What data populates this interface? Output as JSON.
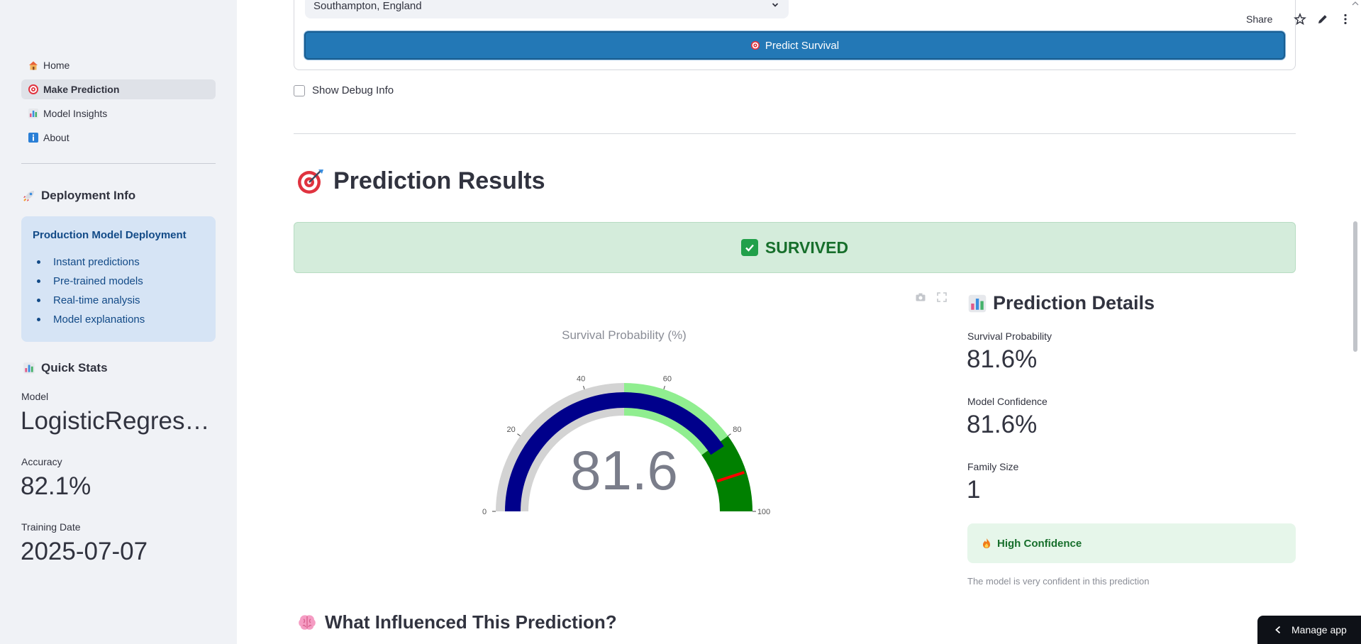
{
  "sidebar": {
    "nav": [
      {
        "label": "Home",
        "icon": "house-icon"
      },
      {
        "label": "Make Prediction",
        "icon": "target-icon",
        "active": true
      },
      {
        "label": "Model Insights",
        "icon": "bar-chart-icon"
      },
      {
        "label": "About",
        "icon": "info-icon"
      }
    ],
    "deployment_title": "Deployment Info",
    "deployment_box": {
      "title": "Production Model Deployment",
      "items": [
        "Instant predictions",
        "Pre-trained models",
        "Real-time analysis",
        "Model explanations"
      ]
    },
    "quick_stats_title": "Quick Stats",
    "stats": [
      {
        "label": "Model",
        "value": "LogisticRegress..."
      },
      {
        "label": "Accuracy",
        "value": "82.1%"
      },
      {
        "label": "Training Date",
        "value": "2025-07-07"
      }
    ]
  },
  "form": {
    "embark_value": "Southampton, England",
    "predict_label": "Predict Survival",
    "debug_label": "Show Debug Info",
    "debug_checked": false
  },
  "toolbar": {
    "share_label": "Share"
  },
  "results": {
    "title": "Prediction Results",
    "outcome": "SURVIVED"
  },
  "gauge": {
    "title": "Survival Probability (%)",
    "value": 81.6,
    "value_label": "81.6",
    "range": [
      0,
      100
    ],
    "ticks": [
      "0",
      "20",
      "40",
      "60",
      "80",
      "100"
    ],
    "steps": [
      {
        "range": [
          0,
          50
        ],
        "color": "#d3d3d3"
      },
      {
        "range": [
          50,
          80
        ],
        "color": "#90ee90"
      },
      {
        "range": [
          80,
          100
        ],
        "color": "#008000"
      }
    ],
    "bar_color": "#00008b",
    "threshold": 90,
    "threshold_color": "#ff0000"
  },
  "details": {
    "title": "Prediction Details",
    "metrics": [
      {
        "label": "Survival Probability",
        "value": "81.6%"
      },
      {
        "label": "Model Confidence",
        "value": "81.6%"
      },
      {
        "label": "Family Size",
        "value": "1"
      }
    ],
    "confidence_label": "High Confidence",
    "caption": "The model is very confident in this prediction"
  },
  "influence_title": "What Influenced This Prediction?",
  "manage_app_label": "Manage app"
}
